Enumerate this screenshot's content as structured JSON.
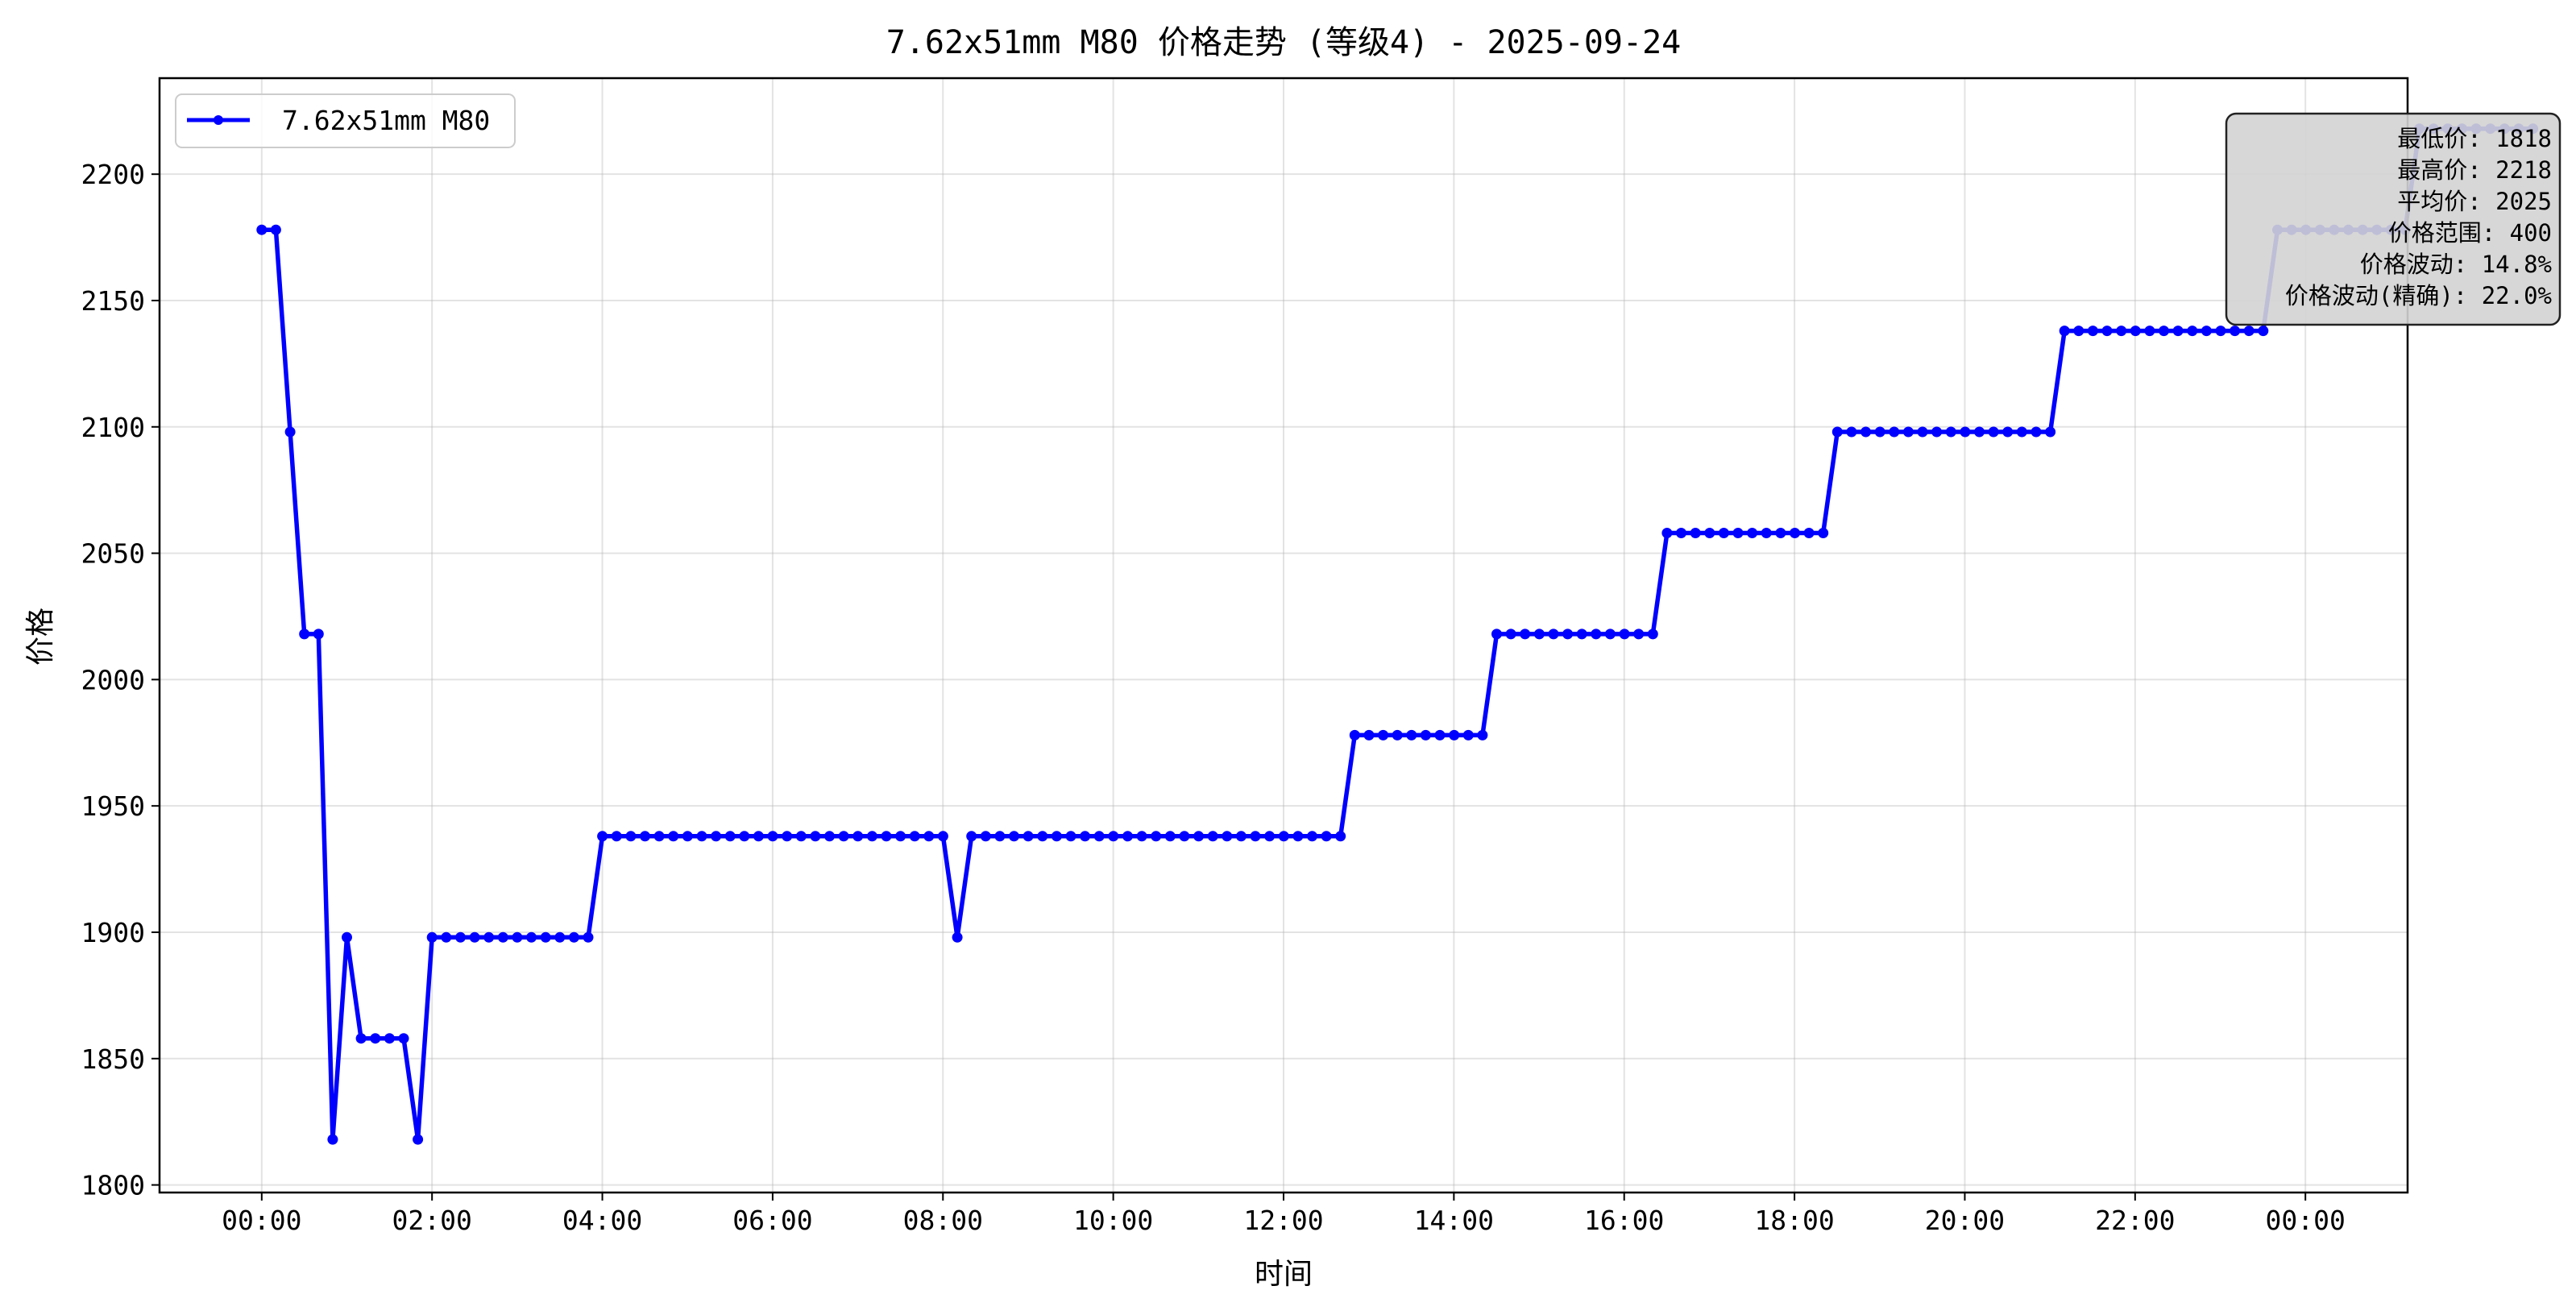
{
  "chart_data": {
    "type": "line",
    "title": "7.62x51mm M80 价格走势 (等级4) - 2025-09-24",
    "xlabel": "时间",
    "ylabel": "价格",
    "x_unit": "hour",
    "xlim": [
      -1.2,
      25.2
    ],
    "ylim": [
      1797,
      2238
    ],
    "x_ticks": [
      {
        "value": 0,
        "label": "00:00"
      },
      {
        "value": 2,
        "label": "02:00"
      },
      {
        "value": 4,
        "label": "04:00"
      },
      {
        "value": 6,
        "label": "06:00"
      },
      {
        "value": 8,
        "label": "08:00"
      },
      {
        "value": 10,
        "label": "10:00"
      },
      {
        "value": 12,
        "label": "12:00"
      },
      {
        "value": 14,
        "label": "14:00"
      },
      {
        "value": 16,
        "label": "16:00"
      },
      {
        "value": 18,
        "label": "18:00"
      },
      {
        "value": 20,
        "label": "20:00"
      },
      {
        "value": 22,
        "label": "22:00"
      },
      {
        "value": 24,
        "label": "00:00"
      }
    ],
    "y_ticks": [
      1800,
      1850,
      1900,
      1950,
      2000,
      2050,
      2100,
      2150,
      2200
    ],
    "grid": true,
    "legend": {
      "position": "top-left",
      "entries": [
        "7.62x51mm M80"
      ]
    },
    "series": [
      {
        "name": "7.62x51mm M80",
        "color": "#0000ff",
        "marker": "circle",
        "step_hours": 0.1667,
        "start_hour": 0,
        "values": [
          2178,
          2178,
          2098,
          2018,
          2018,
          1818,
          1898,
          1858,
          1858,
          1858,
          1858,
          1818,
          1898,
          1898,
          1898,
          1898,
          1898,
          1898,
          1898,
          1898,
          1898,
          1898,
          1898,
          1898,
          1938,
          1938,
          1938,
          1938,
          1938,
          1938,
          1938,
          1938,
          1938,
          1938,
          1938,
          1938,
          1938,
          1938,
          1938,
          1938,
          1938,
          1938,
          1938,
          1938,
          1938,
          1938,
          1938,
          1938,
          1938,
          1898,
          1938,
          1938,
          1938,
          1938,
          1938,
          1938,
          1938,
          1938,
          1938,
          1938,
          1938,
          1938,
          1938,
          1938,
          1938,
          1938,
          1938,
          1938,
          1938,
          1938,
          1938,
          1938,
          1938,
          1938,
          1938,
          1938,
          1938,
          1978,
          1978,
          1978,
          1978,
          1978,
          1978,
          1978,
          1978,
          1978,
          1978,
          2018,
          2018,
          2018,
          2018,
          2018,
          2018,
          2018,
          2018,
          2018,
          2018,
          2018,
          2018,
          2058,
          2058,
          2058,
          2058,
          2058,
          2058,
          2058,
          2058,
          2058,
          2058,
          2058,
          2058,
          2098,
          2098,
          2098,
          2098,
          2098,
          2098,
          2098,
          2098,
          2098,
          2098,
          2098,
          2098,
          2098,
          2098,
          2098,
          2098,
          2138,
          2138,
          2138,
          2138,
          2138,
          2138,
          2138,
          2138,
          2138,
          2138,
          2138,
          2138,
          2138,
          2138,
          2138,
          2178,
          2178,
          2178,
          2178,
          2178,
          2178,
          2178,
          2178,
          2178,
          2178,
          2218,
          2218,
          2218,
          2218,
          2218,
          2218,
          2218,
          2218,
          2218
        ]
      }
    ],
    "stats_box": {
      "position": "top-right",
      "lines": [
        "最低价: 1818",
        "最高价: 2218",
        "平均价: 2025",
        "价格范围: 400",
        "价格波动: 14.8%",
        "价格波动(精确): 22.0%"
      ]
    }
  }
}
